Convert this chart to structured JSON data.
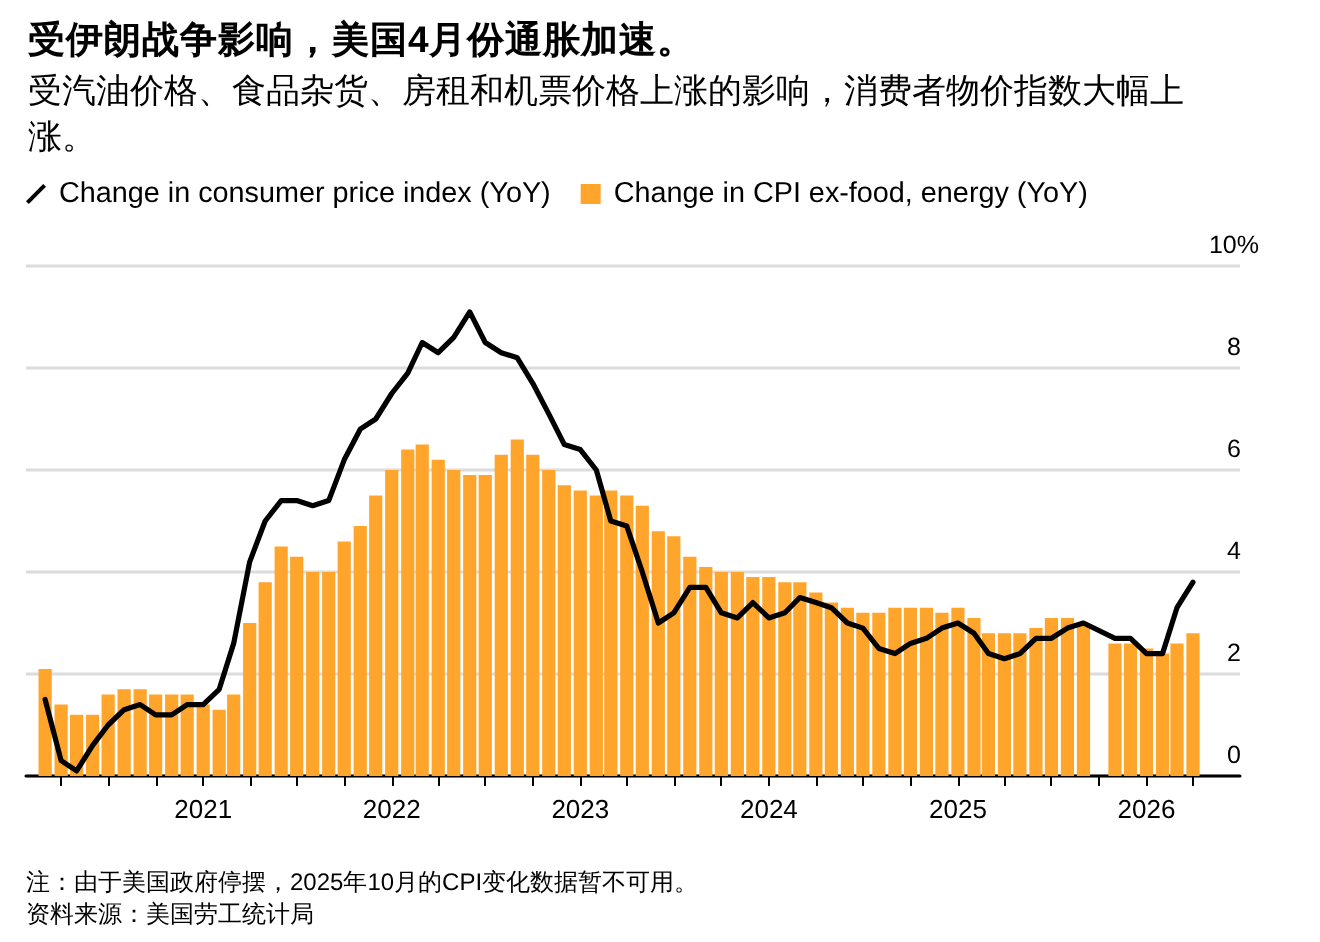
{
  "chart_data": {
    "type": "bar",
    "title": "受伊朗战争影响，美国4月份通胀加速。",
    "subtitle": "受汽油价格、食品杂货、房租和机票价格上涨的影响，消费者物价指数大幅上涨。",
    "x": [
      "2020-03",
      "2020-04",
      "2020-05",
      "2020-06",
      "2020-07",
      "2020-08",
      "2020-09",
      "2020-10",
      "2020-11",
      "2020-12",
      "2021-01",
      "2021-02",
      "2021-03",
      "2021-04",
      "2021-05",
      "2021-06",
      "2021-07",
      "2021-08",
      "2021-09",
      "2021-10",
      "2021-11",
      "2021-12",
      "2022-01",
      "2022-02",
      "2022-03",
      "2022-04",
      "2022-05",
      "2022-06",
      "2022-07",
      "2022-08",
      "2022-09",
      "2022-10",
      "2022-11",
      "2022-12",
      "2023-01",
      "2023-02",
      "2023-03",
      "2023-04",
      "2023-05",
      "2023-06",
      "2023-07",
      "2023-08",
      "2023-09",
      "2023-10",
      "2023-11",
      "2023-12",
      "2024-01",
      "2024-02",
      "2024-03",
      "2024-04",
      "2024-05",
      "2024-06",
      "2024-07",
      "2024-08",
      "2024-09",
      "2024-10",
      "2024-11",
      "2024-12",
      "2025-01",
      "2025-02",
      "2025-03",
      "2025-04",
      "2025-05",
      "2025-06",
      "2025-07",
      "2025-08",
      "2025-09",
      "2025-11",
      "2025-12",
      "2026-01",
      "2026-02",
      "2026-03",
      "2026-04"
    ],
    "series": [
      {
        "name": "Change in consumer price index (YoY)",
        "type": "line",
        "color": "#000000",
        "values": [
          1.5,
          0.3,
          0.1,
          0.6,
          1.0,
          1.3,
          1.4,
          1.2,
          1.2,
          1.4,
          1.4,
          1.7,
          2.6,
          4.2,
          5.0,
          5.4,
          5.4,
          5.3,
          5.4,
          6.2,
          6.8,
          7.0,
          7.5,
          7.9,
          8.5,
          8.3,
          8.6,
          9.1,
          8.5,
          8.3,
          8.2,
          7.7,
          7.1,
          6.5,
          6.4,
          6.0,
          5.0,
          4.9,
          4.0,
          3.0,
          3.2,
          3.7,
          3.7,
          3.2,
          3.1,
          3.4,
          3.1,
          3.2,
          3.5,
          3.4,
          3.3,
          3.0,
          2.9,
          2.5,
          2.4,
          2.6,
          2.7,
          2.9,
          3.0,
          2.8,
          2.4,
          2.3,
          2.4,
          2.7,
          2.7,
          2.9,
          3.0,
          2.7,
          2.7,
          2.4,
          2.4,
          3.3,
          3.8
        ]
      },
      {
        "name": "Change in CPI ex-food, energy (YoY)",
        "color": "#ffa52c",
        "values": [
          2.1,
          1.4,
          1.2,
          1.2,
          1.6,
          1.7,
          1.7,
          1.6,
          1.6,
          1.6,
          1.4,
          1.3,
          1.6,
          3.0,
          3.8,
          4.5,
          4.3,
          4.0,
          4.0,
          4.6,
          4.9,
          5.5,
          6.0,
          6.4,
          6.5,
          6.2,
          6.0,
          5.9,
          5.9,
          6.3,
          6.6,
          6.3,
          6.0,
          5.7,
          5.6,
          5.5,
          5.6,
          5.5,
          5.3,
          4.8,
          4.7,
          4.3,
          4.1,
          4.0,
          4.0,
          3.9,
          3.9,
          3.8,
          3.8,
          3.6,
          3.4,
          3.3,
          3.2,
          3.2,
          3.3,
          3.3,
          3.3,
          3.2,
          3.3,
          3.1,
          2.8,
          2.8,
          2.8,
          2.9,
          3.1,
          3.1,
          3.0,
          2.6,
          2.6,
          2.5,
          2.4,
          2.6,
          2.8
        ]
      }
    ],
    "xlim": [
      "2020-01-24",
      "2026-07-01"
    ],
    "xticks": [
      {
        "value": "2020-04",
        "label": null
      },
      {
        "value": "2020-07",
        "label": null
      },
      {
        "value": "2020-10",
        "label": null
      },
      {
        "value": "2021-01",
        "label": "2021"
      },
      {
        "value": "2021-04",
        "label": null
      },
      {
        "value": "2021-07",
        "label": null
      },
      {
        "value": "2021-10",
        "label": null
      },
      {
        "value": "2022-01",
        "label": "2022"
      },
      {
        "value": "2022-04",
        "label": null
      },
      {
        "value": "2022-07",
        "label": null
      },
      {
        "value": "2022-10",
        "label": null
      },
      {
        "value": "2023-01",
        "label": "2023"
      },
      {
        "value": "2023-04",
        "label": null
      },
      {
        "value": "2023-07",
        "label": null
      },
      {
        "value": "2023-10",
        "label": null
      },
      {
        "value": "2024-01",
        "label": "2024"
      },
      {
        "value": "2024-04",
        "label": null
      },
      {
        "value": "2024-07",
        "label": null
      },
      {
        "value": "2024-10",
        "label": null
      },
      {
        "value": "2025-01",
        "label": "2025"
      },
      {
        "value": "2025-04",
        "label": null
      },
      {
        "value": "2025-07",
        "label": null
      },
      {
        "value": "2025-10",
        "label": null
      },
      {
        "value": "2026-01",
        "label": "2026"
      },
      {
        "value": "2026-04",
        "label": null
      }
    ],
    "ylim": [
      0,
      10
    ],
    "yticks": [
      0,
      2,
      4,
      6,
      8,
      {
        "value": 10,
        "label": "10%"
      }
    ],
    "grid": "y",
    "legend": "top left",
    "annotations": [
      "注：由于美国政府停摆，2025年10月的CPI变化数据暂不可用。",
      "资料来源：美国劳工统计局"
    ]
  }
}
